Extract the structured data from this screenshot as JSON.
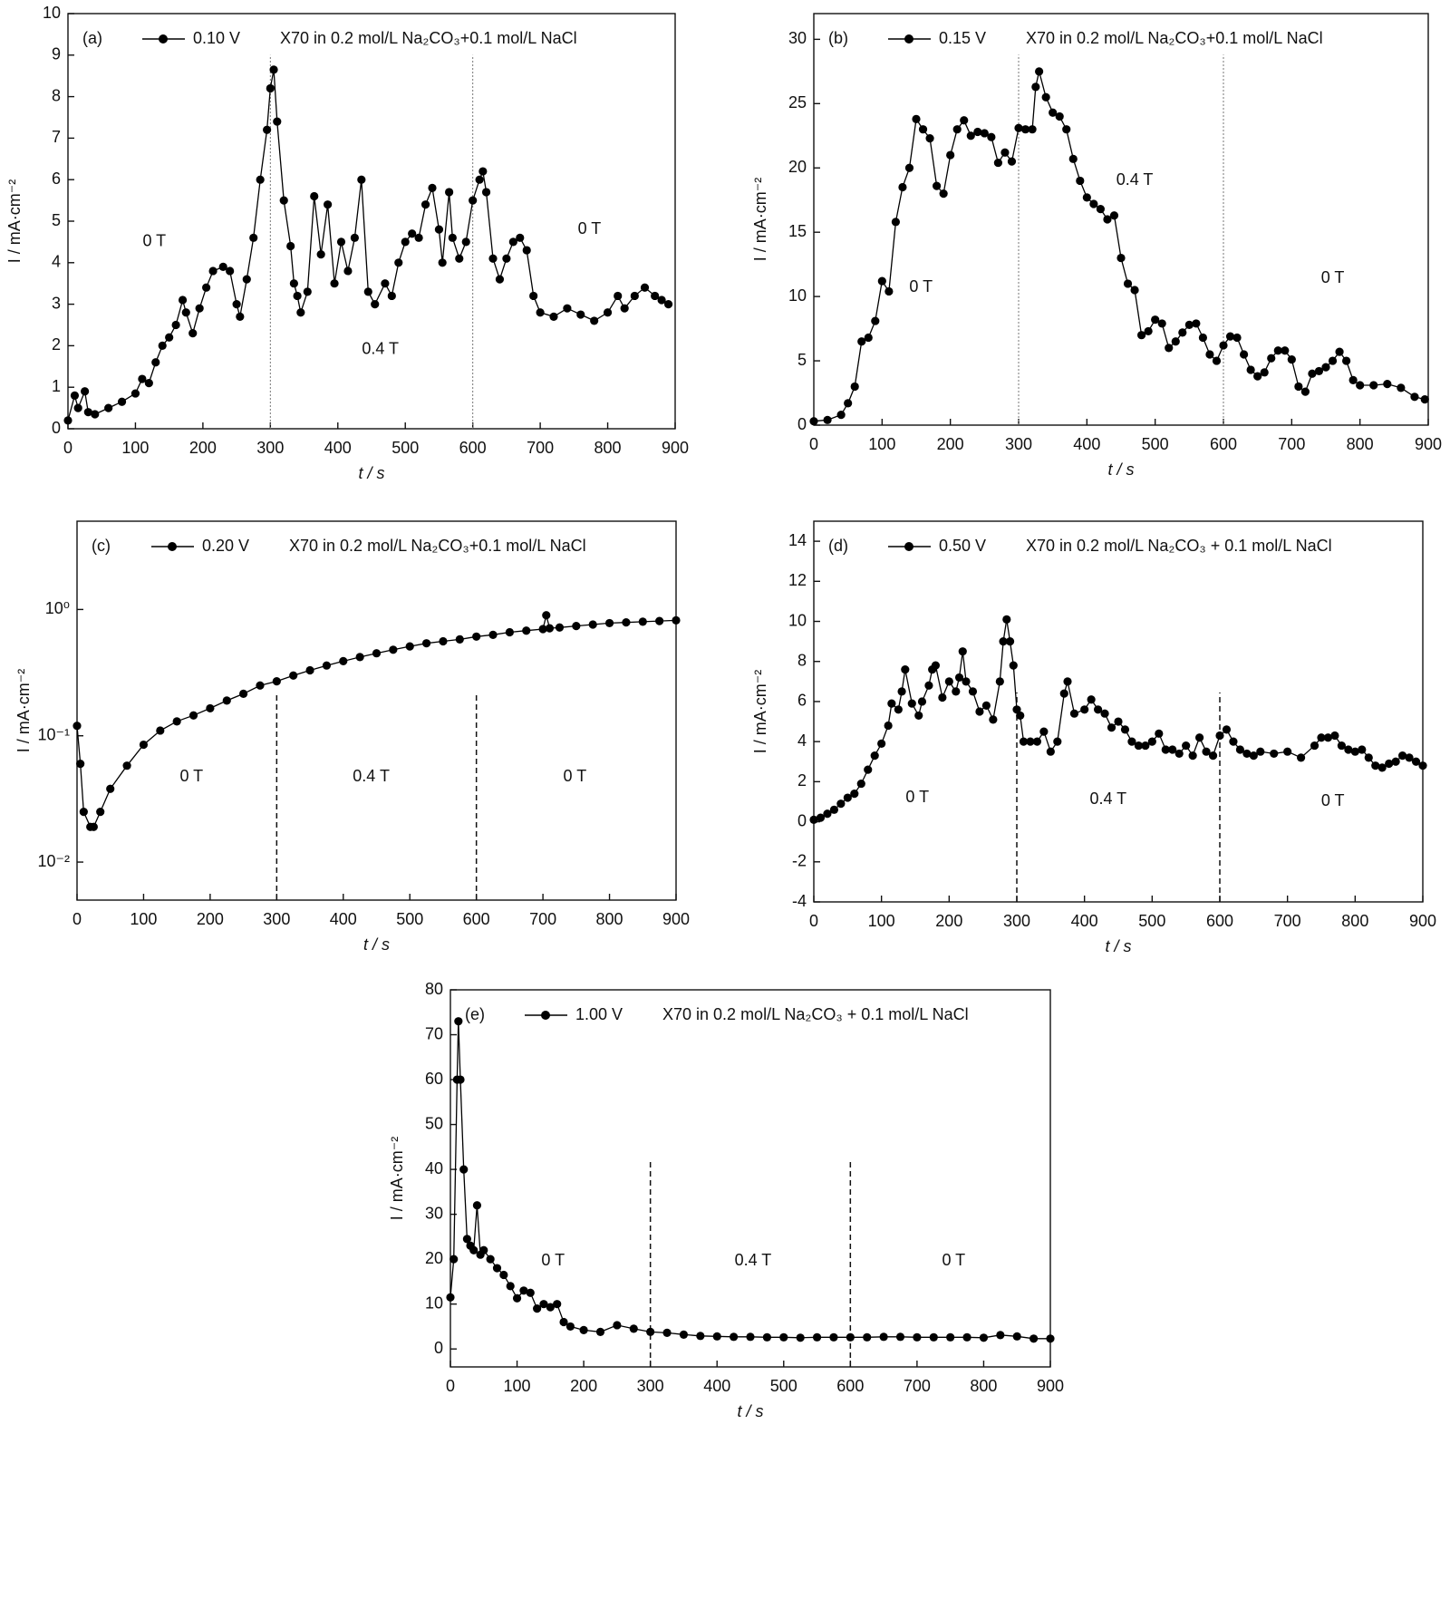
{
  "chart_data": [
    {
      "type": "line",
      "panel": "(a)",
      "title": "X70 in 0.2 mol/L Na₂CO₃+0.1 mol/L NaCl",
      "xlabel": "t / s",
      "ylabel": "I / mA·cm⁻²",
      "xlim": [
        0,
        900
      ],
      "ylim": [
        0,
        10
      ],
      "xticks": [
        0,
        100,
        200,
        300,
        400,
        500,
        600,
        700,
        800,
        900
      ],
      "yticks": [
        0,
        1,
        2,
        3,
        4,
        5,
        6,
        7,
        8,
        9,
        10
      ],
      "vlines": [
        300,
        600
      ],
      "vline_style": "dotted",
      "annotations": [
        {
          "text": "0 T",
          "x": 128,
          "y": 4.5
        },
        {
          "text": "0.4 T",
          "x": 463,
          "y": 1.9
        },
        {
          "text": "0 T",
          "x": 773,
          "y": 4.8
        }
      ],
      "x": [
        0,
        10,
        15,
        25,
        30,
        40,
        60,
        80,
        100,
        110,
        120,
        130,
        140,
        150,
        160,
        170,
        175,
        185,
        195,
        205,
        215,
        230,
        240,
        250,
        255,
        265,
        275,
        285,
        295,
        300,
        305,
        310,
        320,
        330,
        335,
        340,
        345,
        355,
        365,
        375,
        385,
        395,
        405,
        415,
        425,
        435,
        445,
        455,
        470,
        480,
        490,
        500,
        510,
        520,
        530,
        540,
        550,
        555,
        565,
        570,
        580,
        590,
        600,
        610,
        615,
        620,
        630,
        640,
        650,
        660,
        670,
        680,
        690,
        700,
        720,
        740,
        760,
        780,
        800,
        815,
        825,
        840,
        855,
        870,
        880,
        890
      ],
      "series": [
        {
          "name": "0.10 V",
          "color": "#000000",
          "values": [
            0.2,
            0.8,
            0.5,
            0.9,
            0.4,
            0.35,
            0.5,
            0.65,
            0.85,
            1.2,
            1.1,
            1.6,
            2.0,
            2.2,
            2.5,
            3.1,
            2.8,
            2.3,
            2.9,
            3.4,
            3.8,
            3.9,
            3.8,
            3.0,
            2.7,
            3.6,
            4.6,
            6.0,
            7.2,
            8.2,
            8.65,
            7.4,
            5.5,
            4.4,
            3.5,
            3.2,
            2.8,
            3.3,
            5.6,
            4.2,
            5.4,
            3.5,
            4.5,
            3.8,
            4.6,
            6.0,
            3.3,
            3.0,
            3.5,
            3.2,
            4.0,
            4.5,
            4.7,
            4.6,
            5.4,
            5.8,
            4.8,
            4.0,
            5.7,
            4.6,
            4.1,
            4.5,
            5.5,
            6.0,
            6.2,
            5.7,
            4.1,
            3.6,
            4.1,
            4.5,
            4.6,
            4.3,
            3.2,
            2.8,
            2.7,
            2.9,
            2.75,
            2.6,
            2.8,
            3.2,
            2.9,
            3.2,
            3.4,
            3.2,
            3.1,
            3.0
          ]
        }
      ]
    },
    {
      "type": "line",
      "panel": "(b)",
      "title": "X70 in 0.2 mol/L Na₂CO₃+0.1 mol/L NaCl",
      "xlabel": "t / s",
      "ylabel": "I / mA·cm⁻²",
      "xlim": [
        0,
        900
      ],
      "ylim": [
        0,
        32
      ],
      "xticks": [
        0,
        100,
        200,
        300,
        400,
        500,
        600,
        700,
        800,
        900
      ],
      "yticks": [
        0,
        5,
        10,
        15,
        20,
        25,
        30
      ],
      "vlines": [
        300,
        600
      ],
      "vline_style": "dotted",
      "annotations": [
        {
          "text": "0 T",
          "x": 157,
          "y": 10.7
        },
        {
          "text": "0.4 T",
          "x": 470,
          "y": 19
        },
        {
          "text": "0 T",
          "x": 760,
          "y": 11.4
        }
      ],
      "x": [
        0,
        20,
        40,
        50,
        60,
        70,
        80,
        90,
        100,
        110,
        120,
        130,
        140,
        150,
        160,
        170,
        180,
        190,
        200,
        210,
        220,
        230,
        240,
        250,
        260,
        270,
        280,
        290,
        300,
        310,
        320,
        325,
        330,
        340,
        350,
        360,
        370,
        380,
        390,
        400,
        410,
        420,
        430,
        440,
        450,
        460,
        470,
        480,
        490,
        500,
        510,
        520,
        530,
        540,
        550,
        560,
        570,
        580,
        590,
        600,
        610,
        620,
        630,
        640,
        650,
        660,
        670,
        680,
        690,
        700,
        710,
        720,
        730,
        740,
        750,
        760,
        770,
        780,
        790,
        800,
        820,
        840,
        860,
        880,
        895
      ],
      "series": [
        {
          "name": "0.15 V",
          "color": "#000000",
          "values": [
            0.3,
            0.4,
            0.8,
            1.7,
            3,
            6.5,
            6.8,
            8.1,
            11.2,
            10.4,
            15.8,
            18.5,
            20,
            23.8,
            23,
            22.3,
            18.6,
            18,
            21,
            23,
            23.7,
            22.5,
            22.8,
            22.7,
            22.4,
            20.4,
            21.2,
            20.5,
            23.1,
            23,
            23,
            26.3,
            27.5,
            25.5,
            24.3,
            24,
            23,
            20.7,
            19,
            17.7,
            17.2,
            16.8,
            16,
            16.3,
            13,
            11,
            10.5,
            7,
            7.3,
            8.2,
            7.9,
            6,
            6.5,
            7.2,
            7.8,
            7.9,
            6.8,
            5.5,
            5,
            6.2,
            6.9,
            6.8,
            5.5,
            4.3,
            3.8,
            4.1,
            5.2,
            5.8,
            5.8,
            5.1,
            3,
            2.6,
            4.0,
            4.2,
            4.5,
            5.0,
            5.7,
            5.0,
            3.5,
            3.1,
            3.1,
            3.2,
            2.9,
            2.2,
            2.0
          ]
        }
      ]
    },
    {
      "type": "line",
      "panel": "(c)",
      "title": "X70 in 0.2 mol/L Na₂CO₃+0.1 mol/L NaCl",
      "xlabel": "t / s",
      "ylabel": "I / mA·cm⁻²",
      "log_y": true,
      "xlim": [
        0,
        900
      ],
      "ylim": [
        0.005,
        5
      ],
      "xticks": [
        0,
        100,
        200,
        300,
        400,
        500,
        600,
        700,
        800,
        900
      ],
      "yticks": [
        {
          "value": 0.01,
          "label": "10⁻²"
        },
        {
          "value": 0.1,
          "label": "10⁻¹"
        },
        {
          "value": 1,
          "label": "10⁰"
        }
      ],
      "vlines": [
        300,
        600
      ],
      "vline_style": "dashed",
      "annotations": [
        {
          "text": "0 T",
          "x": 172,
          "y": 0.047
        },
        {
          "text": "0.4 T",
          "x": 442,
          "y": 0.047
        },
        {
          "text": "0 T",
          "x": 748,
          "y": 0.047
        }
      ],
      "x": [
        0,
        5,
        10,
        20,
        25,
        35,
        50,
        75,
        100,
        125,
        150,
        175,
        200,
        225,
        250,
        275,
        300,
        325,
        350,
        375,
        400,
        425,
        450,
        475,
        500,
        525,
        550,
        575,
        600,
        625,
        650,
        675,
        700,
        705,
        710,
        725,
        750,
        775,
        800,
        825,
        850,
        875,
        900
      ],
      "series": [
        {
          "name": "0.20 V",
          "color": "#000000",
          "values": [
            0.12,
            0.06,
            0.025,
            0.019,
            0.019,
            0.025,
            0.038,
            0.058,
            0.085,
            0.11,
            0.13,
            0.145,
            0.165,
            0.19,
            0.215,
            0.25,
            0.27,
            0.3,
            0.33,
            0.36,
            0.39,
            0.42,
            0.45,
            0.48,
            0.51,
            0.54,
            0.56,
            0.58,
            0.61,
            0.63,
            0.66,
            0.68,
            0.7,
            0.9,
            0.71,
            0.72,
            0.74,
            0.76,
            0.78,
            0.79,
            0.8,
            0.81,
            0.82
          ]
        }
      ]
    },
    {
      "type": "line",
      "panel": "(d)",
      "title": "X70 in 0.2 mol/L Na₂CO₃ + 0.1 mol/L NaCl",
      "xlabel": "t / s",
      "ylabel": "I / mA·cm⁻²",
      "xlim": [
        0,
        900
      ],
      "ylim": [
        -4,
        15
      ],
      "xticks": [
        0,
        100,
        200,
        300,
        400,
        500,
        600,
        700,
        800,
        900
      ],
      "yticks": [
        -4,
        -2,
        0,
        2,
        4,
        6,
        8,
        10,
        12,
        14
      ],
      "vlines": [
        300,
        600
      ],
      "vline_style": "dashed",
      "annotations": [
        {
          "text": "0 T",
          "x": 153,
          "y": 1.2
        },
        {
          "text": "0.4 T",
          "x": 435,
          "y": 1.1
        },
        {
          "text": "0 T",
          "x": 767,
          "y": 1.0
        }
      ],
      "x": [
        0,
        10,
        20,
        30,
        40,
        50,
        60,
        70,
        80,
        90,
        100,
        110,
        115,
        125,
        130,
        135,
        145,
        155,
        160,
        170,
        175,
        180,
        190,
        200,
        210,
        215,
        220,
        225,
        235,
        245,
        255,
        265,
        275,
        280,
        285,
        290,
        295,
        300,
        305,
        310,
        320,
        330,
        340,
        350,
        360,
        370,
        375,
        385,
        400,
        410,
        420,
        430,
        440,
        450,
        460,
        470,
        480,
        490,
        500,
        510,
        520,
        530,
        540,
        550,
        560,
        570,
        580,
        590,
        600,
        610,
        620,
        630,
        640,
        650,
        660,
        680,
        700,
        720,
        740,
        750,
        760,
        770,
        780,
        790,
        800,
        810,
        820,
        830,
        840,
        850,
        860,
        870,
        880,
        890,
        900
      ],
      "series": [
        {
          "name": "0.50 V",
          "color": "#000000",
          "values": [
            0.1,
            0.2,
            0.4,
            0.6,
            0.9,
            1.2,
            1.4,
            1.9,
            2.6,
            3.3,
            3.9,
            4.8,
            5.9,
            5.6,
            6.5,
            7.6,
            5.9,
            5.3,
            6.0,
            6.8,
            7.6,
            7.8,
            6.2,
            7.0,
            6.5,
            7.2,
            8.5,
            7.0,
            6.5,
            5.5,
            5.8,
            5.1,
            7.0,
            9.0,
            10.1,
            9.0,
            7.8,
            5.6,
            5.3,
            4.0,
            4.0,
            4.0,
            4.5,
            3.5,
            4.0,
            6.4,
            7.0,
            5.4,
            5.6,
            6.1,
            5.6,
            5.4,
            4.7,
            5.0,
            4.6,
            4.0,
            3.8,
            3.8,
            4.0,
            4.4,
            3.6,
            3.6,
            3.4,
            3.8,
            3.3,
            4.2,
            3.5,
            3.3,
            4.3,
            4.6,
            4.0,
            3.6,
            3.4,
            3.3,
            3.5,
            3.4,
            3.5,
            3.2,
            3.8,
            4.2,
            4.2,
            4.3,
            3.8,
            3.6,
            3.5,
            3.6,
            3.2,
            2.8,
            2.7,
            2.9,
            3.0,
            3.3,
            3.2,
            3.0,
            2.8
          ]
        }
      ]
    },
    {
      "type": "line",
      "panel": "(e)",
      "title": "X70 in 0.2 mol/L Na₂CO₃ + 0.1 mol/L NaCl",
      "xlabel": "t / s",
      "ylabel": "I / mA·cm⁻²",
      "xlim": [
        0,
        900
      ],
      "ylim": [
        -4,
        80
      ],
      "xticks": [
        0,
        100,
        200,
        300,
        400,
        500,
        600,
        700,
        800,
        900
      ],
      "yticks": [
        0,
        10,
        20,
        30,
        40,
        50,
        60,
        70,
        80
      ],
      "vlines": [
        300,
        600
      ],
      "vline_style": "dashed",
      "annotations": [
        {
          "text": "0 T",
          "x": 154,
          "y": 19.6
        },
        {
          "text": "0.4 T",
          "x": 454,
          "y": 19.6
        },
        {
          "text": "0 T",
          "x": 755,
          "y": 19.6
        }
      ],
      "x": [
        0,
        5,
        10,
        12,
        15,
        20,
        25,
        30,
        35,
        40,
        45,
        50,
        60,
        70,
        80,
        90,
        100,
        110,
        120,
        130,
        140,
        150,
        160,
        170,
        180,
        200,
        225,
        250,
        275,
        300,
        325,
        350,
        375,
        400,
        425,
        450,
        475,
        500,
        525,
        550,
        575,
        600,
        625,
        650,
        675,
        700,
        725,
        750,
        775,
        800,
        825,
        850,
        875,
        900
      ],
      "series": [
        {
          "name": "1.00 V",
          "color": "#000000",
          "values": [
            11.5,
            20,
            60,
            73,
            60,
            40,
            24.5,
            23,
            22,
            32,
            21,
            22,
            20,
            18,
            16.5,
            14,
            11.3,
            13,
            12.5,
            9,
            10,
            9.3,
            10,
            6,
            5,
            4.2,
            3.8,
            5.3,
            4.5,
            3.8,
            3.6,
            3.2,
            2.9,
            2.8,
            2.7,
            2.7,
            2.6,
            2.6,
            2.5,
            2.6,
            2.6,
            2.6,
            2.6,
            2.7,
            2.7,
            2.6,
            2.6,
            2.6,
            2.6,
            2.5,
            3.1,
            2.8,
            2.3,
            2.3
          ]
        }
      ]
    }
  ]
}
